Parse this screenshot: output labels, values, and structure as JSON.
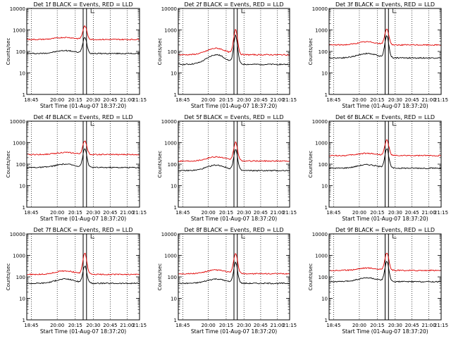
{
  "figure": {
    "colors": {
      "events": "#000000",
      "lld": "#e00000",
      "axes": "#000000",
      "background": "#ffffff"
    }
  },
  "chart_data": [
    {
      "type": "line",
      "title": "Det 1f BLACK = Events, RED = LLD",
      "xlabel": "Start Time (01-Aug-07 18:37:20)",
      "ylabel": "Counts/sec",
      "yscale": "log",
      "ylim": [
        1,
        10000
      ],
      "x_ticks": [
        "18:45",
        "20:00",
        "20:15",
        "20:30",
        "20:45",
        "21:00",
        "21:15"
      ],
      "y_ticks": [
        "1",
        "10",
        "100",
        "1000",
        "10000"
      ],
      "grid": "vertical-dotted",
      "series": [
        {
          "name": "Events",
          "color": "#000000",
          "baseline": 80,
          "bump": 110,
          "peak": 450
        },
        {
          "name": "LLD",
          "color": "#e00000",
          "baseline": 360,
          "bump": 450,
          "peak": 1500
        }
      ]
    },
    {
      "type": "line",
      "title": "Det 2f BLACK = Events, RED = LLD",
      "xlabel": "Start Time (01-Aug-07 18:37:20)",
      "ylabel": "Counts/sec",
      "yscale": "log",
      "ylim": [
        1,
        10000
      ],
      "x_ticks": [
        "18:45",
        "20:00",
        "20:15",
        "20:30",
        "20:45",
        "21:00",
        "21:15"
      ],
      "y_ticks": [
        "1",
        "10",
        "100",
        "1000",
        "10000"
      ],
      "grid": "vertical-dotted",
      "series": [
        {
          "name": "Events",
          "color": "#000000",
          "baseline": 25,
          "bump": 70,
          "peak": 500
        },
        {
          "name": "LLD",
          "color": "#e00000",
          "baseline": 70,
          "bump": 140,
          "peak": 1000
        }
      ]
    },
    {
      "type": "line",
      "title": "Det 3f BLACK = Events, RED = LLD",
      "xlabel": "Start Time (01-Aug-07 18:37:20)",
      "ylabel": "Counts/sec",
      "yscale": "log",
      "ylim": [
        1,
        10000
      ],
      "x_ticks": [
        "18:45",
        "20:00",
        "20:15",
        "20:30",
        "20:45",
        "21:00",
        "21:15"
      ],
      "y_ticks": [
        "1",
        "10",
        "100",
        "1000",
        "10000"
      ],
      "grid": "vertical-dotted",
      "series": [
        {
          "name": "Events",
          "color": "#000000",
          "baseline": 50,
          "bump": 80,
          "peak": 500
        },
        {
          "name": "LLD",
          "color": "#e00000",
          "baseline": 200,
          "bump": 280,
          "peak": 1100
        }
      ]
    },
    {
      "type": "line",
      "title": "Det 4f BLACK = Events, RED = LLD",
      "xlabel": "Start Time (01-Aug-07 18:37:20)",
      "ylabel": "Counts/sec",
      "yscale": "log",
      "ylim": [
        1,
        10000
      ],
      "x_ticks": [
        "18:45",
        "20:00",
        "20:15",
        "20:30",
        "20:45",
        "21:00",
        "21:15"
      ],
      "y_ticks": [
        "1",
        "10",
        "100",
        "1000",
        "10000"
      ],
      "grid": "vertical-dotted",
      "series": [
        {
          "name": "Events",
          "color": "#000000",
          "baseline": 70,
          "bump": 100,
          "peak": 500
        },
        {
          "name": "LLD",
          "color": "#e00000",
          "baseline": 280,
          "bump": 350,
          "peak": 1200
        }
      ]
    },
    {
      "type": "line",
      "title": "Det 5f BLACK = Events, RED = LLD",
      "xlabel": "Start Time (01-Aug-07 18:37:20)",
      "ylabel": "Counts/sec",
      "yscale": "log",
      "ylim": [
        1,
        10000
      ],
      "x_ticks": [
        "18:45",
        "20:00",
        "20:15",
        "20:30",
        "20:45",
        "21:00",
        "21:15"
      ],
      "y_ticks": [
        "1",
        "10",
        "100",
        "1000",
        "10000"
      ],
      "grid": "vertical-dotted",
      "series": [
        {
          "name": "Events",
          "color": "#000000",
          "baseline": 50,
          "bump": 90,
          "peak": 450
        },
        {
          "name": "LLD",
          "color": "#e00000",
          "baseline": 140,
          "bump": 220,
          "peak": 1000
        }
      ]
    },
    {
      "type": "line",
      "title": "Det 6f BLACK = Events, RED = LLD",
      "xlabel": "Start Time (01-Aug-07 18:37:20)",
      "ylabel": "Counts/sec",
      "yscale": "log",
      "ylim": [
        1,
        10000
      ],
      "x_ticks": [
        "18:45",
        "20:00",
        "20:15",
        "20:30",
        "20:45",
        "21:00",
        "21:15"
      ],
      "y_ticks": [
        "1",
        "10",
        "100",
        "1000",
        "10000"
      ],
      "grid": "vertical-dotted",
      "series": [
        {
          "name": "Events",
          "color": "#000000",
          "baseline": 65,
          "bump": 95,
          "peak": 500
        },
        {
          "name": "LLD",
          "color": "#e00000",
          "baseline": 250,
          "bump": 320,
          "peak": 1300
        }
      ]
    },
    {
      "type": "line",
      "title": "Det 7f BLACK = Events, RED = LLD",
      "xlabel": "Start Time (01-Aug-07 18:37:20)",
      "ylabel": "Counts/sec",
      "yscale": "log",
      "ylim": [
        1,
        10000
      ],
      "x_ticks": [
        "18:45",
        "20:00",
        "20:15",
        "20:30",
        "20:45",
        "21:00",
        "21:15"
      ],
      "y_ticks": [
        "1",
        "10",
        "100",
        "1000",
        "10000"
      ],
      "grid": "vertical-dotted",
      "series": [
        {
          "name": "Events",
          "color": "#000000",
          "baseline": 50,
          "bump": 80,
          "peak": 300
        },
        {
          "name": "LLD",
          "color": "#e00000",
          "baseline": 130,
          "bump": 190,
          "peak": 1200
        }
      ]
    },
    {
      "type": "line",
      "title": "Det 8f BLACK = Events, RED = LLD",
      "xlabel": "Start Time (01-Aug-07 18:37:20)",
      "ylabel": "Counts/sec",
      "yscale": "log",
      "ylim": [
        1,
        10000
      ],
      "x_ticks": [
        "18:45",
        "20:00",
        "20:15",
        "20:30",
        "20:45",
        "21:00",
        "21:15"
      ],
      "y_ticks": [
        "1",
        "10",
        "100",
        "1000",
        "10000"
      ],
      "grid": "vertical-dotted",
      "series": [
        {
          "name": "Events",
          "color": "#000000",
          "baseline": 50,
          "bump": 80,
          "peak": 450
        },
        {
          "name": "LLD",
          "color": "#e00000",
          "baseline": 140,
          "bump": 210,
          "peak": 1200
        }
      ]
    },
    {
      "type": "line",
      "title": "Det 9f BLACK = Events, RED = LLD",
      "xlabel": "Start Time (01-Aug-07 18:37:20)",
      "ylabel": "Counts/sec",
      "yscale": "log",
      "ylim": [
        1,
        10000
      ],
      "x_ticks": [
        "18:45",
        "20:00",
        "20:15",
        "20:30",
        "20:45",
        "21:00",
        "21:15"
      ],
      "y_ticks": [
        "1",
        "10",
        "100",
        "1000",
        "10000"
      ],
      "grid": "vertical-dotted",
      "series": [
        {
          "name": "Events",
          "color": "#000000",
          "baseline": 60,
          "bump": 90,
          "peak": 500
        },
        {
          "name": "LLD",
          "color": "#e00000",
          "baseline": 200,
          "bump": 260,
          "peak": 1300
        }
      ]
    }
  ]
}
